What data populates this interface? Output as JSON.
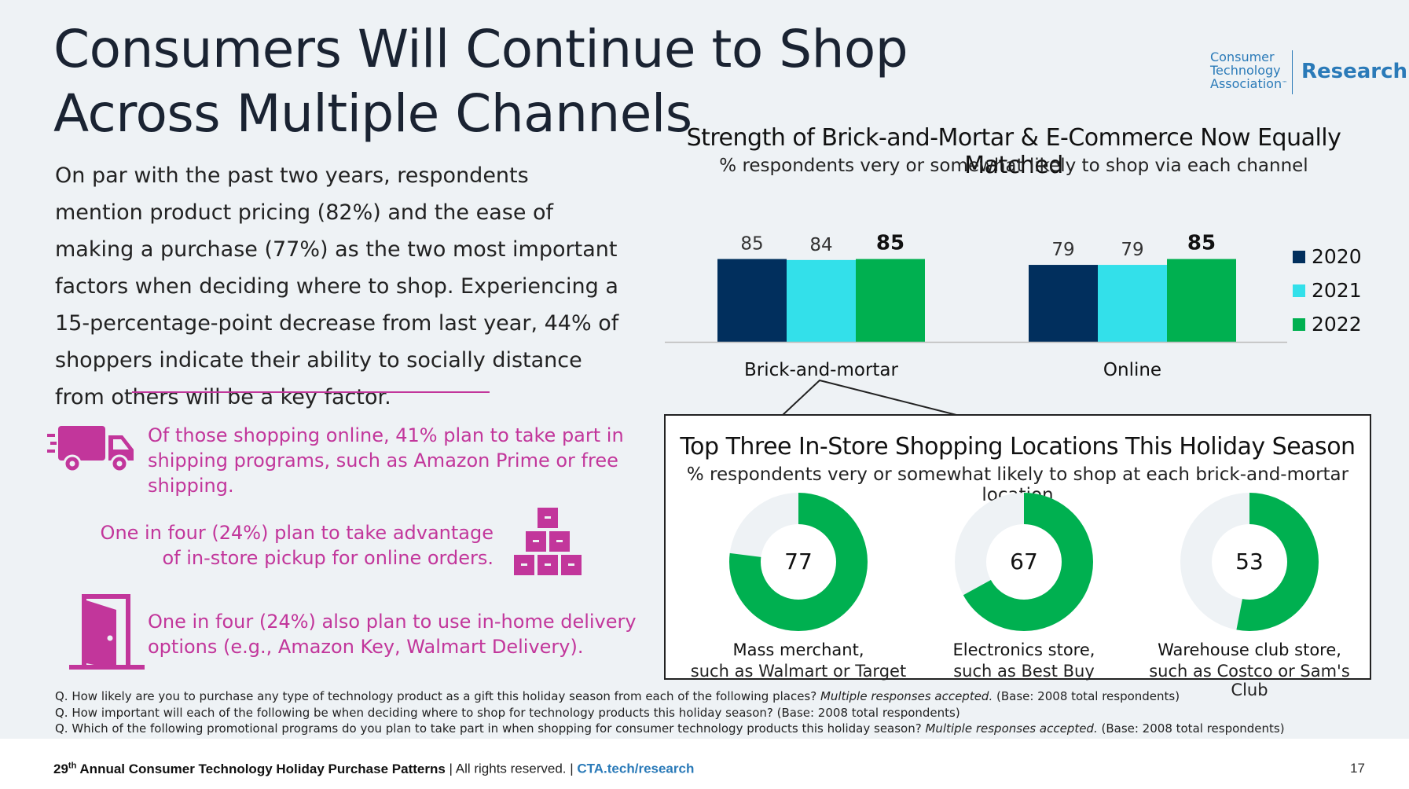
{
  "page": {
    "title": "Consumers Will Continue to Shop Across Multiple Channels",
    "logo": {
      "org": "Consumer Technology Association",
      "tm": "™",
      "division": "Research"
    },
    "body": "On par with the past two years, respondents mention product pricing (82%) and the ease of making a purchase (77%) as the two most important factors when deciding where to shop. Experiencing a 15-percentage-point decrease from last year, 44% of shoppers indicate their ability to socially distance from others will be a key factor.",
    "callouts": [
      {
        "icon": "delivery-truck-icon",
        "text": "Of those shopping online, 41% plan to take part in shipping programs, such as Amazon Prime or free shipping."
      },
      {
        "icon": "stacked-boxes-icon",
        "text": "One in four (24%) plan to take advantage of in-store pickup for online orders."
      },
      {
        "icon": "open-door-icon",
        "text": "One in four (24%) also plan to use in-home delivery options (e.g., Amazon Key, Walmart Delivery)."
      }
    ],
    "notes": [
      {
        "q": "Q. How likely are you to purchase any type of technology product as a gift this holiday season from each of the following places? ",
        "em": "Multiple responses accepted.",
        "base": " (Base: 2008 total respondents)"
      },
      {
        "q": "Q. How important will each of the following be when deciding where to shop for technology products this holiday season? (Base: 2008 total respondents)",
        "em": "",
        "base": ""
      },
      {
        "q": "Q. Which of the following promotional programs do you plan to take part in when shopping for consumer technology products this holiday season? ",
        "em": "Multiple responses accepted.",
        "base": " (Base: 2008 total respondents)"
      }
    ],
    "footer": {
      "ordinal": "29",
      "sup": "th",
      "report": " Annual Consumer Technology Holiday Purchase Patterns",
      "sep1": " | ",
      "rights": " All rights reserved. ",
      "sep2": " | ",
      "link": " CTA.tech/research"
    },
    "page_number": "17",
    "colors": {
      "navy": "#012f5d",
      "cyan": "#33e0ea",
      "green": "#00b050",
      "magenta": "#c2369b",
      "donut_remainder": "#eef2f5"
    }
  },
  "chart_data": [
    {
      "type": "bar",
      "title": "Strength of Brick-and-Mortar & E-Commerce Now Equally Matched",
      "subtitle": "% respondents very or somewhat likely to shop via each channel",
      "categories": [
        "Brick-and-mortar",
        "Online"
      ],
      "series": [
        {
          "name": "2020",
          "values": [
            85,
            79
          ],
          "color": "#012f5d"
        },
        {
          "name": "2021",
          "values": [
            84,
            79
          ],
          "color": "#33e0ea"
        },
        {
          "name": "2022",
          "values": [
            85,
            85
          ],
          "color": "#00b050"
        }
      ],
      "highlight_series": "2022",
      "legend": "right",
      "ylim": [
        0,
        100
      ]
    },
    {
      "type": "pie",
      "variant": "donut",
      "title": "Top Three In-Store Shopping Locations This Holiday Season",
      "subtitle": "% respondents very or somewhat likely to shop at each brick-and-mortar location",
      "items": [
        {
          "value": 77,
          "label": "77",
          "category": "Mass merchant,",
          "example": "such as Walmart or Target"
        },
        {
          "value": 67,
          "label": "67",
          "category": "Electronics store,",
          "example": "such as Best Buy"
        },
        {
          "value": 53,
          "label": "53",
          "category": "Warehouse club store,",
          "example": "such as Costco or Sam's Club"
        }
      ]
    }
  ]
}
